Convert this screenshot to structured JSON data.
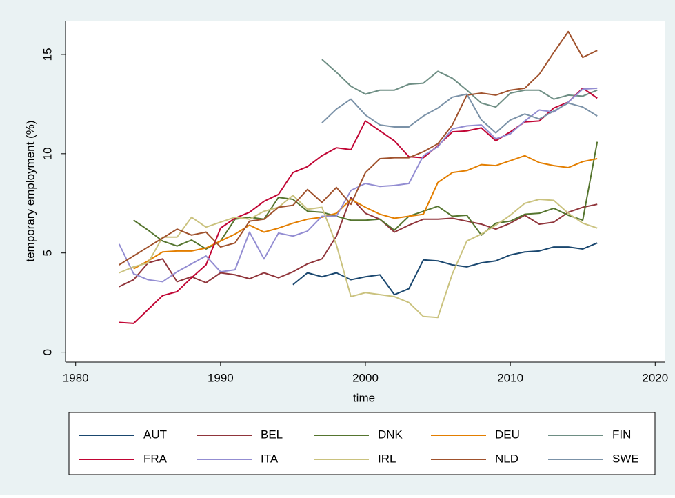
{
  "chart_data": {
    "type": "line",
    "x_label": "time",
    "y_label": "temporary employment (%)",
    "x": [
      1983,
      1984,
      1985,
      1986,
      1987,
      1988,
      1989,
      1990,
      1991,
      1992,
      1993,
      1994,
      1995,
      1996,
      1997,
      1998,
      1999,
      2000,
      2001,
      2002,
      2003,
      2004,
      2005,
      2006,
      2007,
      2008,
      2009,
      2010,
      2011,
      2012,
      2013,
      2014,
      2015,
      2016
    ],
    "xlim": [
      1979.3,
      2020.7
    ],
    "xticks": [
      1980,
      1990,
      2000,
      2010,
      2020
    ],
    "ylim": [
      -0.5,
      16.7
    ],
    "yticks": [
      0,
      5,
      10,
      15
    ],
    "grid": false,
    "series": [
      {
        "name": "AUT",
        "color": "#1a476f",
        "values": [
          null,
          null,
          null,
          null,
          null,
          null,
          null,
          null,
          null,
          null,
          null,
          null,
          3.4,
          4.0,
          3.8,
          4.0,
          3.65,
          3.8,
          3.9,
          2.9,
          3.2,
          4.65,
          4.6,
          4.4,
          4.3,
          4.5,
          4.6,
          4.9,
          5.05,
          5.1,
          5.3,
          5.3,
          5.2,
          5.5
        ]
      },
      {
        "name": "BEL",
        "color": "#90353b",
        "values": [
          3.3,
          3.65,
          4.5,
          4.7,
          3.55,
          3.8,
          3.5,
          4.0,
          3.9,
          3.7,
          4.0,
          3.75,
          4.05,
          4.45,
          4.7,
          5.85,
          7.8,
          7.0,
          6.7,
          6.05,
          6.4,
          6.7,
          6.7,
          6.75,
          6.6,
          6.45,
          6.2,
          6.5,
          6.9,
          6.45,
          6.55,
          7.05,
          7.3,
          7.45
        ]
      },
      {
        "name": "DNK",
        "color": "#55752f",
        "values": [
          null,
          6.65,
          6.15,
          5.6,
          5.35,
          5.65,
          5.2,
          5.6,
          6.7,
          6.8,
          6.7,
          7.8,
          7.7,
          7.1,
          7.05,
          6.85,
          6.65,
          6.65,
          6.7,
          6.15,
          6.85,
          7.1,
          7.35,
          6.85,
          6.9,
          5.9,
          6.5,
          6.6,
          6.95,
          7.0,
          7.25,
          6.9,
          6.65,
          10.6
        ]
      },
      {
        "name": "DEU",
        "color": "#e37e00",
        "values": [
          null,
          4.2,
          4.6,
          5.05,
          5.1,
          5.1,
          5.25,
          5.6,
          5.95,
          6.4,
          6.05,
          6.25,
          6.5,
          6.7,
          6.8,
          7.0,
          7.7,
          7.3,
          6.95,
          6.75,
          6.85,
          6.95,
          8.55,
          9.05,
          9.15,
          9.45,
          9.4,
          9.65,
          9.9,
          9.55,
          9.4,
          9.3,
          9.6,
          9.75
        ]
      },
      {
        "name": "FIN",
        "color": "#6e8e84",
        "values": [
          null,
          null,
          null,
          null,
          null,
          null,
          null,
          null,
          null,
          null,
          null,
          null,
          null,
          null,
          14.75,
          14.1,
          13.4,
          13.0,
          13.2,
          13.2,
          13.5,
          13.55,
          14.15,
          13.8,
          13.2,
          12.55,
          12.35,
          13.05,
          13.2,
          13.2,
          12.75,
          12.95,
          12.9,
          13.2
        ]
      },
      {
        "name": "FRA",
        "color": "#c10534",
        "values": [
          1.5,
          1.45,
          2.15,
          2.85,
          3.05,
          3.75,
          4.4,
          6.25,
          6.75,
          7.05,
          7.6,
          7.95,
          9.05,
          9.35,
          9.9,
          10.3,
          10.2,
          11.65,
          11.15,
          10.65,
          9.85,
          9.8,
          10.4,
          11.1,
          11.15,
          11.3,
          10.65,
          11.1,
          11.6,
          11.65,
          12.3,
          12.6,
          13.3,
          12.8
        ]
      },
      {
        "name": "ITA",
        "color": "#938dd2",
        "values": [
          5.45,
          3.95,
          3.65,
          3.55,
          4.05,
          4.45,
          4.85,
          4.05,
          4.15,
          6.05,
          4.7,
          6.0,
          5.85,
          6.1,
          6.85,
          6.85,
          8.15,
          8.5,
          8.35,
          8.4,
          8.5,
          9.9,
          10.35,
          11.25,
          11.4,
          11.45,
          10.75,
          11.0,
          11.65,
          12.2,
          12.1,
          12.6,
          13.25,
          13.3
        ]
      },
      {
        "name": "IRL",
        "color": "#cac27e",
        "values": [
          4.0,
          4.3,
          4.5,
          5.8,
          5.8,
          6.8,
          6.3,
          6.55,
          6.8,
          6.7,
          7.1,
          7.3,
          7.9,
          7.2,
          7.3,
          5.4,
          2.8,
          3.0,
          2.9,
          2.8,
          2.5,
          1.8,
          1.75,
          3.95,
          5.6,
          5.95,
          6.4,
          6.9,
          7.5,
          7.7,
          7.65,
          7.0,
          6.5,
          6.25
        ]
      },
      {
        "name": "NLD",
        "color": "#a0522d",
        "values": [
          4.4,
          4.85,
          5.3,
          5.75,
          6.2,
          5.9,
          6.05,
          5.3,
          5.5,
          6.6,
          6.7,
          7.3,
          7.4,
          8.2,
          7.55,
          8.3,
          7.45,
          9.05,
          9.75,
          9.8,
          9.8,
          10.1,
          10.5,
          11.45,
          12.95,
          13.05,
          12.95,
          13.2,
          13.3,
          14.0,
          15.1,
          16.15,
          14.85,
          15.2
        ]
      },
      {
        "name": "SWE",
        "color": "#7b92a8",
        "values": [
          null,
          null,
          null,
          null,
          null,
          null,
          null,
          null,
          null,
          null,
          null,
          null,
          null,
          null,
          11.55,
          12.25,
          12.75,
          11.95,
          11.45,
          11.35,
          11.35,
          11.9,
          12.3,
          12.85,
          13.0,
          11.7,
          11.05,
          11.7,
          12.0,
          11.75,
          12.15,
          12.55,
          12.35,
          11.9
        ]
      }
    ]
  }
}
